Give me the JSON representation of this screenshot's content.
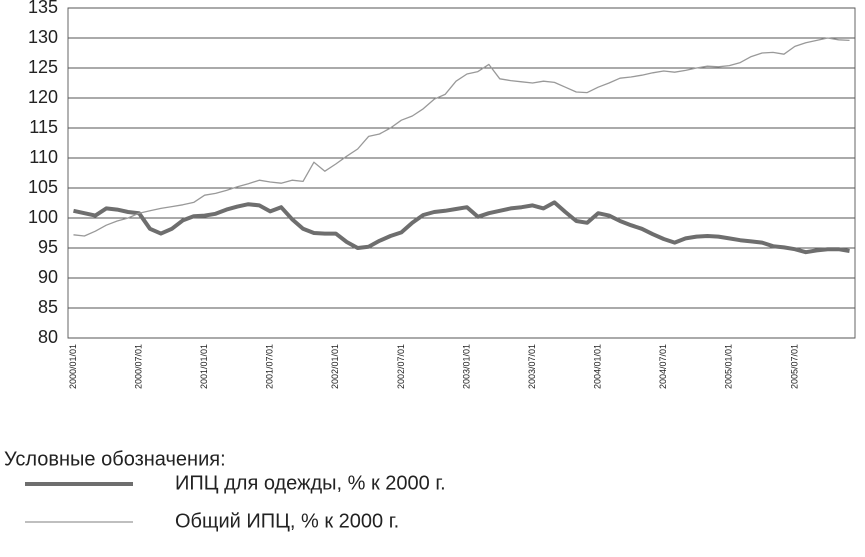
{
  "chart_data": {
    "type": "line",
    "legend_title": "Условные обозначения:",
    "categories": [
      "2000/01/01",
      null,
      null,
      null,
      null,
      null,
      "2000/07/01",
      null,
      null,
      null,
      null,
      null,
      "2001/01/01",
      null,
      null,
      null,
      null,
      null,
      "2001/07/01",
      null,
      null,
      null,
      null,
      null,
      "2002/01/01",
      null,
      null,
      null,
      null,
      null,
      "2002/07/01",
      null,
      null,
      null,
      null,
      null,
      "2003/01/01",
      null,
      null,
      null,
      null,
      null,
      "2003/07/01",
      null,
      null,
      null,
      null,
      null,
      "2004/01/01",
      null,
      null,
      null,
      null,
      null,
      "2004/07/01",
      null,
      null,
      null,
      null,
      null,
      "2005/01/01",
      null,
      null,
      null,
      null,
      null,
      "2005/07/01",
      null,
      null,
      null,
      null,
      null
    ],
    "series": [
      {
        "name": "ИПЦ для одежды, % к 2000 г.",
        "color": "#6e6e6e",
        "width": 4,
        "values": [
          101.2,
          100.8,
          100.4,
          101.6,
          101.4,
          101.0,
          100.8,
          98.2,
          97.4,
          98.2,
          99.6,
          100.3,
          100.4,
          100.7,
          101.4,
          101.9,
          102.3,
          102.1,
          101.1,
          101.8,
          99.8,
          98.2,
          97.5,
          97.4,
          97.4,
          96.0,
          95.0,
          95.2,
          96.2,
          97.0,
          97.6,
          99.2,
          100.5,
          101.0,
          101.2,
          101.5,
          101.8,
          100.2,
          100.8,
          101.2,
          101.6,
          101.8,
          102.1,
          101.6,
          102.6,
          101.0,
          99.5,
          99.2,
          100.8,
          100.4,
          99.5,
          98.8,
          98.2,
          97.3,
          96.5,
          95.9,
          96.6,
          96.9,
          97.0,
          96.9,
          96.6,
          96.3,
          96.1,
          95.9,
          95.3,
          95.1,
          94.8,
          94.3,
          94.6,
          94.8,
          94.8,
          94.5
        ]
      },
      {
        "name": "Общий ИПЦ, % к 2000 г.",
        "color": "#999999",
        "width": 1.3,
        "values": [
          97.2,
          97.0,
          97.8,
          98.8,
          99.5,
          100.0,
          100.8,
          101.2,
          101.6,
          101.9,
          102.2,
          102.6,
          103.8,
          104.1,
          104.6,
          105.2,
          105.7,
          106.3,
          106.0,
          105.8,
          106.3,
          106.1,
          109.3,
          107.8,
          109.0,
          110.3,
          111.5,
          113.6,
          114.0,
          115.0,
          116.3,
          117.0,
          118.2,
          119.8,
          120.6,
          122.8,
          124.0,
          124.4,
          125.6,
          123.2,
          122.9,
          122.7,
          122.5,
          122.8,
          122.6,
          121.8,
          121.0,
          120.9,
          121.8,
          122.5,
          123.3,
          123.5,
          123.8,
          124.2,
          124.5,
          124.3,
          124.6,
          125.0,
          125.3,
          125.2,
          125.4,
          125.9,
          126.9,
          127.5,
          127.6,
          127.3,
          128.6,
          129.2,
          129.6,
          130.0,
          129.7,
          129.6
        ]
      }
    ],
    "ylim": [
      80,
      135
    ],
    "yticks": [
      80,
      85,
      90,
      95,
      100,
      105,
      110,
      115,
      120,
      125,
      130,
      135
    ],
    "grid": true
  }
}
